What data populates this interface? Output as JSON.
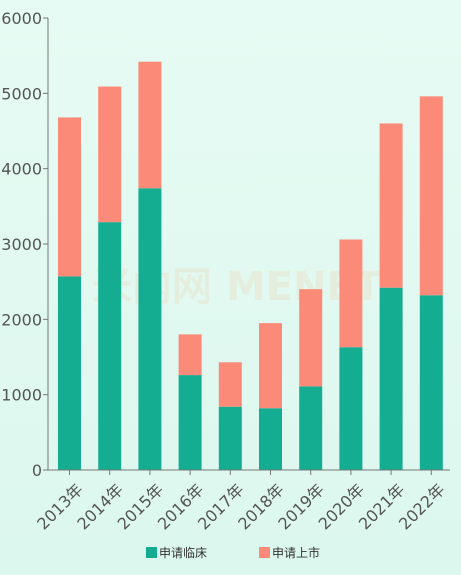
{
  "chart_data": {
    "type": "bar",
    "stacked": true,
    "categories": [
      "2013年",
      "2014年",
      "2015年",
      "2016年",
      "2017年",
      "2018年",
      "2019年",
      "2020年",
      "2021年",
      "2022年"
    ],
    "series": [
      {
        "name": "申请临床",
        "values": [
          2570,
          3290,
          3740,
          1260,
          840,
          820,
          1110,
          1630,
          2420,
          2320
        ],
        "color": "#15ad92"
      },
      {
        "name": "申请上市",
        "values": [
          2110,
          1800,
          1680,
          540,
          590,
          1130,
          1290,
          1430,
          2180,
          2640
        ],
        "color": "#fb8b78"
      }
    ],
    "yticks": [
      0,
      1000,
      2000,
      3000,
      4000,
      5000,
      6000
    ],
    "ylim": [
      0,
      6000
    ],
    "legend_position": "bottom",
    "grid": false,
    "watermark": "米内网 MENET"
  }
}
